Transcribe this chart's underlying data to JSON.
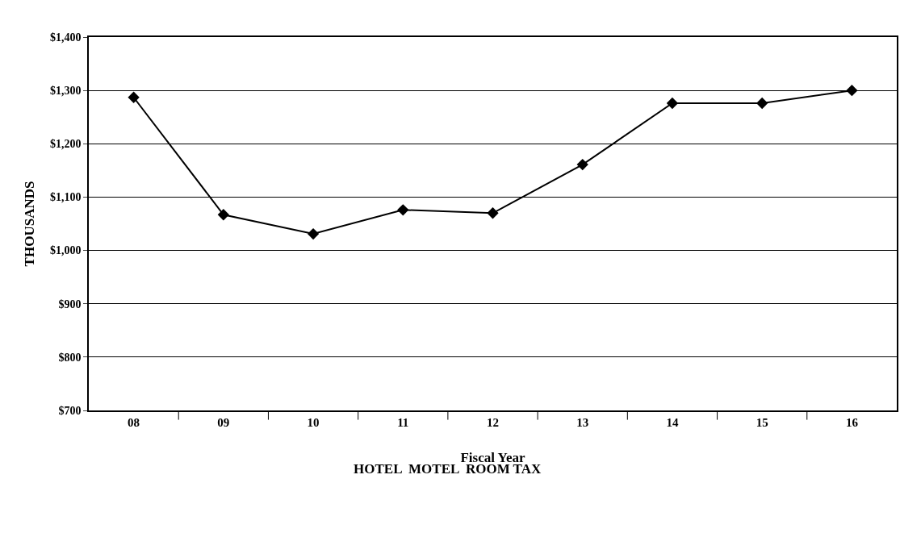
{
  "chart_data": {
    "type": "line",
    "title": "HOTEL  MOTEL  ROOM TAX",
    "xlabel": "Fiscal Year",
    "ylabel": "THOUSANDS",
    "categories": [
      "08",
      "09",
      "10",
      "11",
      "12",
      "13",
      "14",
      "15",
      "16"
    ],
    "series": [
      {
        "color": "#000000",
        "values": [
          1287,
          1067,
          1031,
          1076,
          1070,
          1161,
          1276,
          1276,
          1300
        ]
      }
    ],
    "ylim": [
      700,
      1400
    ],
    "yticks": [
      {
        "value": 700,
        "label": "$700"
      },
      {
        "value": 800,
        "label": "$800"
      },
      {
        "value": 900,
        "label": "$900"
      },
      {
        "value": 1000,
        "label": "$1,000"
      },
      {
        "value": 1100,
        "label": "$1,100"
      },
      {
        "value": 1200,
        "label": "$1,200"
      },
      {
        "value": 1300,
        "label": "$1,300"
      },
      {
        "value": 1400,
        "label": "$1,400"
      }
    ],
    "grid": "y",
    "legend": false,
    "marker": "diamond",
    "line_style": "solid"
  }
}
